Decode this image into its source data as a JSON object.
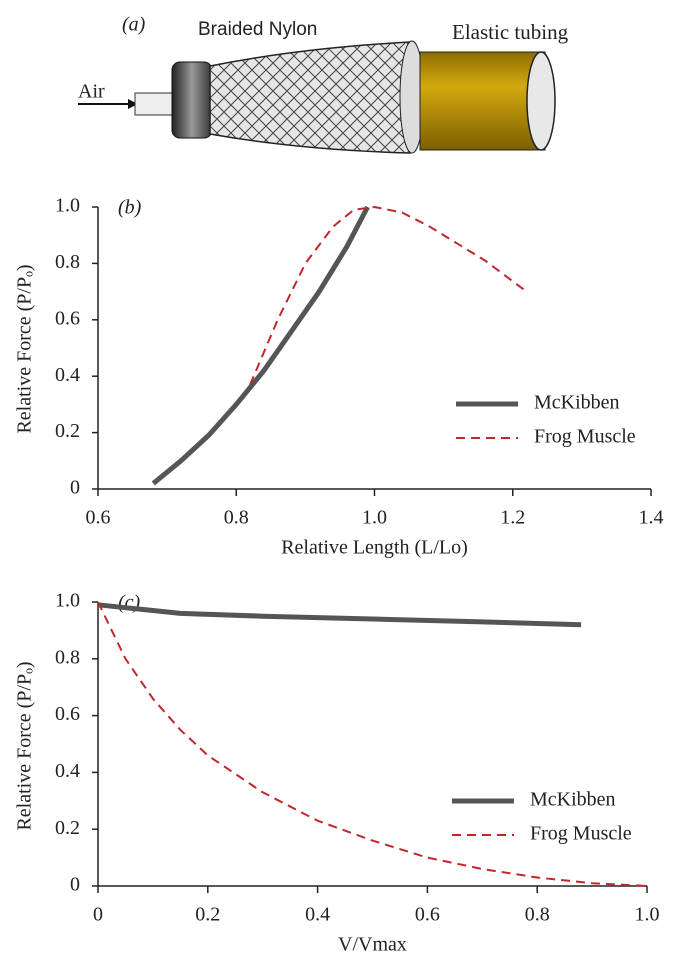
{
  "diagram": {
    "label": "(a)",
    "braid": "Braided Nylon",
    "tube": "Elastic tubing",
    "input": "Air"
  },
  "chart_data": [
    {
      "type": "line",
      "title": "(b)",
      "x_label": "Relative Length (L/Lo)",
      "y_label": "Relative Force (P/Pₒ)",
      "xlim": [
        0.6,
        1.4
      ],
      "xticks": [
        0.6,
        0.8,
        {
          "value": 1,
          "label": "1.0"
        },
        1.2,
        1.4
      ],
      "ylim": [
        0,
        1
      ],
      "yticks": [
        0,
        0.2,
        0.4,
        0.6,
        0.8,
        {
          "value": 1,
          "label": "1.0"
        }
      ],
      "legend": "lower right",
      "series": [
        {
          "name": "McKibben",
          "color": "#555555",
          "style": "solid",
          "x": [
            0.68,
            0.72,
            0.76,
            0.8,
            0.84,
            0.88,
            0.92,
            0.96,
            0.99
          ],
          "values": [
            0.02,
            0.1,
            0.19,
            0.3,
            0.42,
            0.56,
            0.7,
            0.86,
            1.0
          ]
        },
        {
          "name": "Frog Muscle",
          "color": "#c0272d",
          "style": "dashed",
          "x": [
            0.82,
            0.86,
            0.9,
            0.94,
            0.97,
            1.0,
            1.04,
            1.08,
            1.12,
            1.16,
            1.22
          ],
          "values": [
            0.37,
            0.6,
            0.8,
            0.93,
            0.99,
            1.0,
            0.98,
            0.93,
            0.87,
            0.81,
            0.7
          ]
        }
      ]
    },
    {
      "type": "line",
      "title": "(c)",
      "x_label": "V/Vmax",
      "y_label": "Relative Force (P/Pₒ)",
      "xlim": [
        0,
        1
      ],
      "xticks": [
        0,
        0.2,
        0.4,
        0.6,
        0.8,
        {
          "value": 1,
          "label": "1.0"
        }
      ],
      "ylim": [
        0,
        1
      ],
      "yticks": [
        0,
        0.2,
        0.4,
        0.6,
        0.8,
        {
          "value": 1,
          "label": "1.0"
        }
      ],
      "legend": "lower right",
      "series": [
        {
          "name": "McKibben",
          "color": "#555555",
          "style": "solid",
          "x": [
            0,
            0.05,
            0.1,
            0.15,
            0.3,
            0.5,
            0.7,
            0.88
          ],
          "values": [
            0.99,
            0.98,
            0.97,
            0.96,
            0.95,
            0.94,
            0.93,
            0.92
          ]
        },
        {
          "name": "Frog Muscle",
          "color": "#c0272d",
          "style": "dashed",
          "x": [
            0,
            0.05,
            0.1,
            0.15,
            0.2,
            0.3,
            0.4,
            0.5,
            0.6,
            0.7,
            0.8,
            0.9,
            1.0
          ],
          "values": [
            1.0,
            0.8,
            0.66,
            0.55,
            0.46,
            0.33,
            0.23,
            0.16,
            0.1,
            0.06,
            0.03,
            0.01,
            0
          ]
        }
      ]
    }
  ]
}
